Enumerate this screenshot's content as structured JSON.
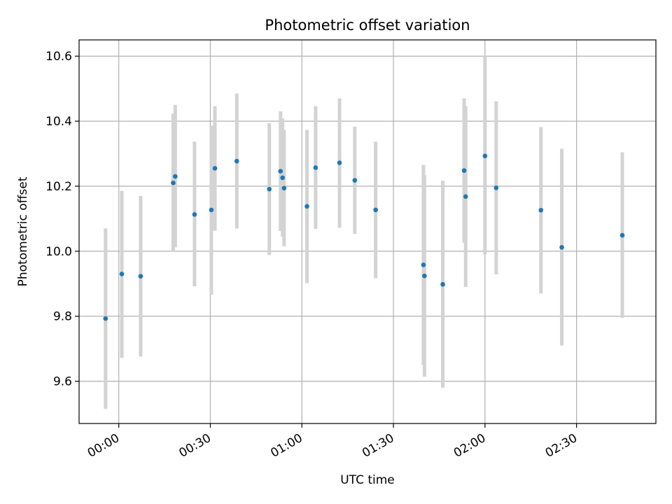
{
  "chart_data": {
    "type": "scatter",
    "title": "Photometric offset variation",
    "xlabel": "UTC time",
    "ylabel": "Photometric offset",
    "x_axis": {
      "type": "time",
      "min": "23:47",
      "max": "02:56"
    },
    "ylim": [
      9.47,
      10.65
    ],
    "x_ticks": [
      "00:00",
      "00:30",
      "01:00",
      "01:30",
      "02:00",
      "02:30"
    ],
    "y_ticks": [
      "9.6",
      "9.8",
      "10.0",
      "10.2",
      "10.4",
      "10.6"
    ],
    "grid": true,
    "colors": {
      "point": "#1f77b4",
      "errorbar": "#d3d3d3",
      "grid": "#b0b0b0"
    },
    "points": [
      {
        "x": "23:55:40",
        "y": 9.793,
        "low": 9.515,
        "high": 10.07
      },
      {
        "x": "00:01:00",
        "y": 9.93,
        "low": 9.672,
        "high": 10.186
      },
      {
        "x": "00:07:10",
        "y": 9.923,
        "low": 9.676,
        "high": 10.17
      },
      {
        "x": "00:17:50",
        "y": 10.21,
        "low": 10.0,
        "high": 10.423
      },
      {
        "x": "00:18:30",
        "y": 10.23,
        "low": 10.012,
        "high": 10.45
      },
      {
        "x": "00:24:50",
        "y": 10.113,
        "low": 9.892,
        "high": 10.337
      },
      {
        "x": "00:30:20",
        "y": 10.127,
        "low": 9.866,
        "high": 10.386
      },
      {
        "x": "00:31:30",
        "y": 10.255,
        "low": 10.063,
        "high": 10.446
      },
      {
        "x": "00:38:40",
        "y": 10.277,
        "low": 10.07,
        "high": 10.485
      },
      {
        "x": "00:49:20",
        "y": 10.191,
        "low": 9.988,
        "high": 10.394
      },
      {
        "x": "00:53:00",
        "y": 10.246,
        "low": 10.062,
        "high": 10.43
      },
      {
        "x": "00:53:40",
        "y": 10.226,
        "low": 10.045,
        "high": 10.408
      },
      {
        "x": "00:54:10",
        "y": 10.194,
        "low": 10.015,
        "high": 10.373
      },
      {
        "x": "01:01:40",
        "y": 10.138,
        "low": 9.902,
        "high": 10.373
      },
      {
        "x": "01:04:30",
        "y": 10.257,
        "low": 10.069,
        "high": 10.446
      },
      {
        "x": "01:12:20",
        "y": 10.272,
        "low": 10.072,
        "high": 10.47
      },
      {
        "x": "01:17:20",
        "y": 10.218,
        "low": 10.053,
        "high": 10.383
      },
      {
        "x": "01:24:10",
        "y": 10.127,
        "low": 9.917,
        "high": 10.337
      },
      {
        "x": "01:39:50",
        "y": 9.958,
        "low": 9.65,
        "high": 10.265
      },
      {
        "x": "01:40:10",
        "y": 9.924,
        "low": 9.614,
        "high": 10.234
      },
      {
        "x": "01:46:10",
        "y": 9.898,
        "low": 9.58,
        "high": 10.217
      },
      {
        "x": "01:53:10",
        "y": 10.248,
        "low": 10.026,
        "high": 10.47
      },
      {
        "x": "01:53:40",
        "y": 10.168,
        "low": 9.89,
        "high": 10.446
      },
      {
        "x": "02:00:00",
        "y": 10.293,
        "low": 9.99,
        "high": 10.6
      },
      {
        "x": "02:03:40",
        "y": 10.195,
        "low": 9.929,
        "high": 10.461
      },
      {
        "x": "02:18:20",
        "y": 10.126,
        "low": 9.87,
        "high": 10.382
      },
      {
        "x": "02:25:10",
        "y": 10.012,
        "low": 9.71,
        "high": 10.315
      },
      {
        "x": "02:45:00",
        "y": 10.049,
        "low": 9.795,
        "high": 10.304
      }
    ]
  }
}
